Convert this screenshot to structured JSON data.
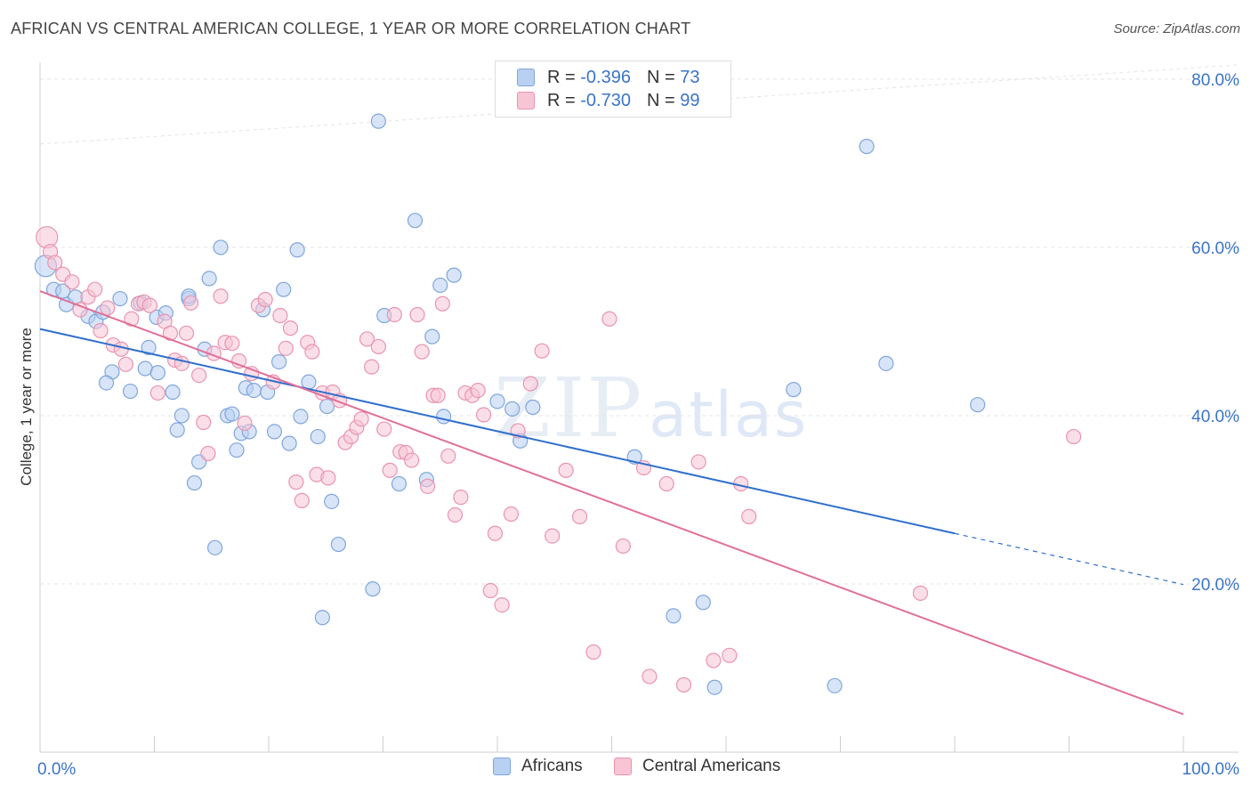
{
  "header": {
    "title": "AFRICAN VS CENTRAL AMERICAN COLLEGE, 1 YEAR OR MORE CORRELATION CHART",
    "source": "Source: ZipAtlas.com"
  },
  "watermark": {
    "zip": "ZIP",
    "atlas": "atlas"
  },
  "legend_top": {
    "rows": [
      {
        "r_label": "R =",
        "r_value": "-0.396",
        "n_label": "N =",
        "n_value": "73"
      },
      {
        "r_label": "R =",
        "r_value": "-0.730",
        "n_label": "N =",
        "n_value": "99"
      }
    ]
  },
  "legend_bottom": {
    "items": [
      "Africans",
      "Central Americans"
    ]
  },
  "colors": {
    "africans_fill": "#b8d0f2",
    "africans_stroke": "#7fa6dd",
    "africans_line": "#2f6fcc",
    "central_fill": "#f8c5d5",
    "central_stroke": "#e994b0",
    "central_line": "#e0709a",
    "axis_text": "#3b74c9",
    "grid": "#e4e4e4"
  },
  "chart_data": {
    "type": "scatter",
    "title": "AFRICAN VS CENTRAL AMERICAN COLLEGE, 1 YEAR OR MORE CORRELATION CHART",
    "xlabel": "",
    "ylabel": "College, 1 year or more",
    "xlim": [
      0,
      100
    ],
    "ylim": [
      0,
      82
    ],
    "x_tick_labels": [
      "0.0%",
      "100.0%"
    ],
    "y_ticks": [
      20,
      40,
      60,
      80
    ],
    "y_tick_labels": [
      "20.0%",
      "40.0%",
      "60.0%",
      "80.0%"
    ],
    "grid": true,
    "legend_position": "top-center",
    "series": [
      {
        "name": "Africans",
        "r": -0.396,
        "n": 73,
        "trend": {
          "x0": 0,
          "y0": 50.3,
          "x1": 80,
          "y1": 26.0,
          "dashed_to": 100
        },
        "points": [
          [
            0.5,
            57.8
          ],
          [
            1.2,
            55.0
          ],
          [
            2.3,
            53.2
          ],
          [
            2.0,
            54.8
          ],
          [
            3.1,
            54.1
          ],
          [
            4.2,
            51.8
          ],
          [
            4.9,
            51.2
          ],
          [
            5.5,
            52.3
          ],
          [
            6.3,
            45.2
          ],
          [
            7.0,
            53.9
          ],
          [
            5.8,
            43.9
          ],
          [
            7.9,
            42.9
          ],
          [
            8.8,
            53.4
          ],
          [
            9.2,
            45.6
          ],
          [
            9.5,
            48.1
          ],
          [
            10.2,
            51.7
          ],
          [
            10.3,
            45.1
          ],
          [
            11.0,
            52.2
          ],
          [
            11.6,
            42.8
          ],
          [
            12.0,
            38.3
          ],
          [
            12.4,
            40.0
          ],
          [
            13.0,
            53.9
          ],
          [
            13.0,
            54.2
          ],
          [
            13.5,
            32.0
          ],
          [
            13.9,
            34.5
          ],
          [
            14.4,
            47.9
          ],
          [
            14.8,
            56.3
          ],
          [
            15.3,
            24.3
          ],
          [
            15.8,
            60.0
          ],
          [
            16.4,
            40.0
          ],
          [
            16.8,
            40.2
          ],
          [
            17.2,
            35.9
          ],
          [
            17.6,
            37.9
          ],
          [
            18.0,
            43.3
          ],
          [
            18.3,
            38.1
          ],
          [
            18.7,
            43.0
          ],
          [
            19.5,
            52.6
          ],
          [
            19.9,
            42.8
          ],
          [
            20.5,
            38.1
          ],
          [
            20.9,
            46.4
          ],
          [
            21.3,
            55.0
          ],
          [
            21.8,
            36.7
          ],
          [
            22.5,
            59.7
          ],
          [
            22.8,
            39.9
          ],
          [
            23.5,
            44.0
          ],
          [
            24.3,
            37.5
          ],
          [
            24.7,
            16.0
          ],
          [
            25.1,
            41.1
          ],
          [
            25.5,
            29.8
          ],
          [
            26.1,
            24.7
          ],
          [
            29.1,
            19.4
          ],
          [
            29.6,
            75.0
          ],
          [
            30.1,
            51.9
          ],
          [
            31.4,
            31.9
          ],
          [
            32.8,
            63.2
          ],
          [
            33.8,
            32.4
          ],
          [
            34.3,
            49.4
          ],
          [
            35.0,
            55.5
          ],
          [
            35.3,
            39.9
          ],
          [
            36.2,
            56.7
          ],
          [
            40.0,
            41.7
          ],
          [
            41.3,
            40.8
          ],
          [
            42.0,
            37.0
          ],
          [
            43.1,
            41.0
          ],
          [
            52.0,
            35.1
          ],
          [
            55.4,
            16.2
          ],
          [
            58.0,
            17.8
          ],
          [
            59.0,
            7.7
          ],
          [
            65.9,
            43.1
          ],
          [
            69.5,
            7.9
          ],
          [
            72.3,
            72.0
          ],
          [
            74.0,
            46.2
          ],
          [
            82.0,
            41.3
          ]
        ]
      },
      {
        "name": "Central Americans",
        "r": -0.73,
        "n": 99,
        "trend": {
          "x0": 0,
          "y0": 54.8,
          "x1": 100,
          "y1": 4.5
        },
        "points": [
          [
            0.6,
            61.2
          ],
          [
            0.9,
            59.5
          ],
          [
            1.3,
            58.2
          ],
          [
            2.0,
            56.8
          ],
          [
            2.8,
            55.9
          ],
          [
            3.5,
            52.6
          ],
          [
            4.2,
            54.1
          ],
          [
            4.8,
            55.0
          ],
          [
            5.3,
            50.1
          ],
          [
            5.9,
            52.8
          ],
          [
            6.4,
            48.4
          ],
          [
            7.1,
            47.9
          ],
          [
            7.5,
            46.1
          ],
          [
            8.0,
            51.5
          ],
          [
            8.6,
            53.3
          ],
          [
            9.1,
            53.5
          ],
          [
            9.6,
            53.1
          ],
          [
            10.3,
            42.7
          ],
          [
            10.9,
            51.2
          ],
          [
            11.4,
            49.8
          ],
          [
            11.8,
            46.6
          ],
          [
            12.4,
            46.2
          ],
          [
            12.8,
            49.8
          ],
          [
            13.2,
            53.4
          ],
          [
            13.9,
            44.8
          ],
          [
            14.3,
            39.2
          ],
          [
            14.7,
            35.5
          ],
          [
            15.2,
            47.4
          ],
          [
            15.8,
            54.2
          ],
          [
            16.2,
            48.7
          ],
          [
            16.8,
            48.6
          ],
          [
            17.4,
            46.5
          ],
          [
            17.9,
            39.1
          ],
          [
            18.5,
            45.0
          ],
          [
            19.1,
            53.1
          ],
          [
            19.7,
            53.8
          ],
          [
            20.4,
            44.0
          ],
          [
            21.0,
            51.9
          ],
          [
            21.5,
            48.0
          ],
          [
            21.9,
            50.4
          ],
          [
            22.4,
            32.1
          ],
          [
            22.9,
            29.9
          ],
          [
            23.4,
            48.7
          ],
          [
            23.8,
            47.6
          ],
          [
            24.2,
            33.0
          ],
          [
            24.7,
            42.7
          ],
          [
            25.2,
            32.6
          ],
          [
            25.6,
            42.8
          ],
          [
            26.2,
            41.8
          ],
          [
            26.7,
            36.8
          ],
          [
            27.2,
            37.5
          ],
          [
            27.7,
            38.6
          ],
          [
            28.1,
            39.6
          ],
          [
            28.6,
            49.1
          ],
          [
            29.0,
            45.8
          ],
          [
            29.6,
            48.2
          ],
          [
            30.1,
            38.4
          ],
          [
            30.6,
            33.5
          ],
          [
            31.0,
            52.0
          ],
          [
            31.5,
            35.7
          ],
          [
            32.0,
            35.6
          ],
          [
            32.5,
            34.7
          ],
          [
            33.0,
            52.0
          ],
          [
            33.4,
            47.6
          ],
          [
            33.9,
            31.6
          ],
          [
            34.4,
            42.4
          ],
          [
            34.8,
            42.4
          ],
          [
            35.2,
            53.3
          ],
          [
            35.7,
            35.2
          ],
          [
            36.3,
            28.2
          ],
          [
            36.8,
            30.3
          ],
          [
            37.2,
            42.7
          ],
          [
            37.8,
            42.4
          ],
          [
            38.3,
            43.0
          ],
          [
            38.8,
            40.1
          ],
          [
            39.4,
            19.2
          ],
          [
            39.8,
            26.0
          ],
          [
            40.4,
            17.5
          ],
          [
            41.2,
            28.3
          ],
          [
            41.8,
            38.2
          ],
          [
            42.9,
            43.8
          ],
          [
            43.9,
            47.7
          ],
          [
            44.8,
            25.7
          ],
          [
            46.0,
            33.5
          ],
          [
            47.2,
            28.0
          ],
          [
            48.4,
            11.9
          ],
          [
            49.8,
            51.5
          ],
          [
            51.0,
            24.5
          ],
          [
            52.8,
            33.8
          ],
          [
            53.3,
            9.0
          ],
          [
            54.8,
            31.9
          ],
          [
            56.3,
            8.0
          ],
          [
            57.6,
            34.5
          ],
          [
            58.9,
            10.9
          ],
          [
            60.3,
            11.5
          ],
          [
            61.3,
            31.9
          ],
          [
            62.0,
            28.0
          ],
          [
            77.0,
            18.9
          ],
          [
            90.4,
            37.5
          ]
        ]
      }
    ]
  }
}
